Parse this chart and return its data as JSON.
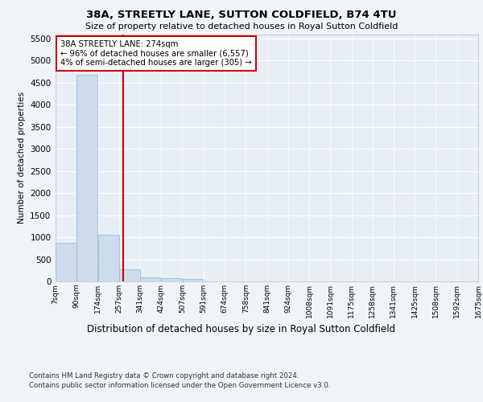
{
  "title": "38A, STREETLY LANE, SUTTON COLDFIELD, B74 4TU",
  "subtitle": "Size of property relative to detached houses in Royal Sutton Coldfield",
  "xlabel": "Distribution of detached houses by size in Royal Sutton Coldfield",
  "ylabel": "Number of detached properties",
  "footnote1": "Contains HM Land Registry data © Crown copyright and database right 2024.",
  "footnote2": "Contains public sector information licensed under the Open Government Licence v3.0.",
  "bar_color": "#cddcec",
  "bar_edge_color": "#a0bcda",
  "vline_x": 274,
  "vline_color": "#cc0000",
  "annotation_title": "38A STREETLY LANE: 274sqm",
  "annotation_line1": "← 96% of detached houses are smaller (6,557)",
  "annotation_line2": "4% of semi-detached houses are larger (305) →",
  "annotation_box_color": "#cc0000",
  "bins": [
    7,
    90,
    174,
    257,
    341,
    424,
    507,
    591,
    674,
    758,
    841,
    924,
    1008,
    1091,
    1175,
    1258,
    1341,
    1425,
    1508,
    1592,
    1675
  ],
  "bin_labels": [
    "7sqm",
    "90sqm",
    "174sqm",
    "257sqm",
    "341sqm",
    "424sqm",
    "507sqm",
    "591sqm",
    "674sqm",
    "758sqm",
    "841sqm",
    "924sqm",
    "1008sqm",
    "1091sqm",
    "1175sqm",
    "1258sqm",
    "1341sqm",
    "1425sqm",
    "1508sqm",
    "1592sqm",
    "1675sqm"
  ],
  "bar_heights": [
    870,
    4680,
    1060,
    275,
    90,
    75,
    60,
    0,
    0,
    0,
    0,
    0,
    0,
    0,
    0,
    0,
    0,
    0,
    0,
    0
  ],
  "ylim": [
    0,
    5600
  ],
  "yticks": [
    0,
    500,
    1000,
    1500,
    2000,
    2500,
    3000,
    3500,
    4000,
    4500,
    5000,
    5500
  ],
  "bg_color": "#f0f4f8",
  "plot_bg_color": "#e8eef5",
  "grid_color": "#ffffff"
}
